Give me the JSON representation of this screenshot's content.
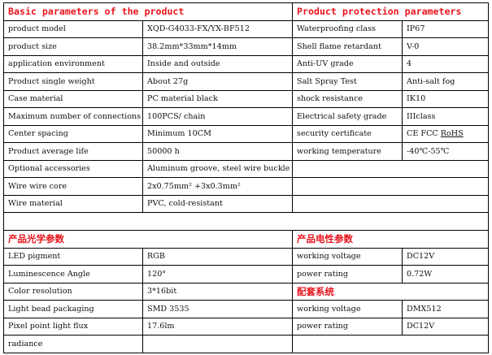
{
  "basic": {
    "title": "Basic parameters of the product",
    "rows": [
      {
        "label": "product model",
        "value": "XQD-G4033-FX/YX-BF512"
      },
      {
        "label": "product size",
        "value": "38.2mm*33mm*14mm"
      },
      {
        "label": "application environment",
        "value": "Inside and outside"
      },
      {
        "label": "Product single weight",
        "value": "About 27g"
      },
      {
        "label": "Case material",
        "value": "PC material black"
      },
      {
        "label": "Maximum number of connections",
        "value": "100PCS/ chain"
      },
      {
        "label": "Center spacing",
        "value": "Minimum 10CM"
      },
      {
        "label": "Product average life",
        "value": "50000 h"
      },
      {
        "label": "Optional accessories",
        "value": "Aluminum groove, steel wire buckle"
      },
      {
        "label": "Wire wire core",
        "value": "2x0.75mm² +3x0.3mm²"
      },
      {
        "label": "Wire material",
        "value": "PVC, cold-resistant"
      }
    ]
  },
  "protection": {
    "title": "Product protection parameters",
    "rows": [
      {
        "label": "Waterproofing class",
        "value": "IP67"
      },
      {
        "label": "Shell flame retardant",
        "value": "V-0"
      },
      {
        "label": "Anti-UV grade",
        "value": "4"
      },
      {
        "label": "Salt Spray Test",
        "value": "Anti-salt fog"
      },
      {
        "label": "shock resistance",
        "value": "IK10"
      },
      {
        "label": "Electrical safety grade",
        "value": "IIIclass"
      },
      {
        "label": "security certificate",
        "value_main": "CE FCC ",
        "value_underlined": "RoHS"
      },
      {
        "label": "working temperature",
        "value": "-40℃-55℃"
      }
    ]
  },
  "optical": {
    "title": "产品光学参数",
    "rows": [
      {
        "label": "LED pigment",
        "value": "RGB"
      },
      {
        "label": "Luminescence Angle",
        "value": "120°"
      },
      {
        "label": "Color resolution",
        "value": "3*16bit"
      },
      {
        "label": "Light bead packaging",
        "value": "SMD 3535"
      },
      {
        "label": "Pixel point light flux",
        "value": "17.6lm"
      },
      {
        "label": "radiance",
        "value": ""
      }
    ]
  },
  "electrical": {
    "title": "产品电性参数",
    "rows": [
      {
        "label": "working voltage",
        "value": "DC12V"
      },
      {
        "label": "power rating",
        "value": "0.72W"
      }
    ]
  },
  "control": {
    "title": "配套系统",
    "rows": [
      {
        "label": "working voltage",
        "value": "DMX512"
      },
      {
        "label": "power rating",
        "value": "DC12V"
      }
    ]
  }
}
